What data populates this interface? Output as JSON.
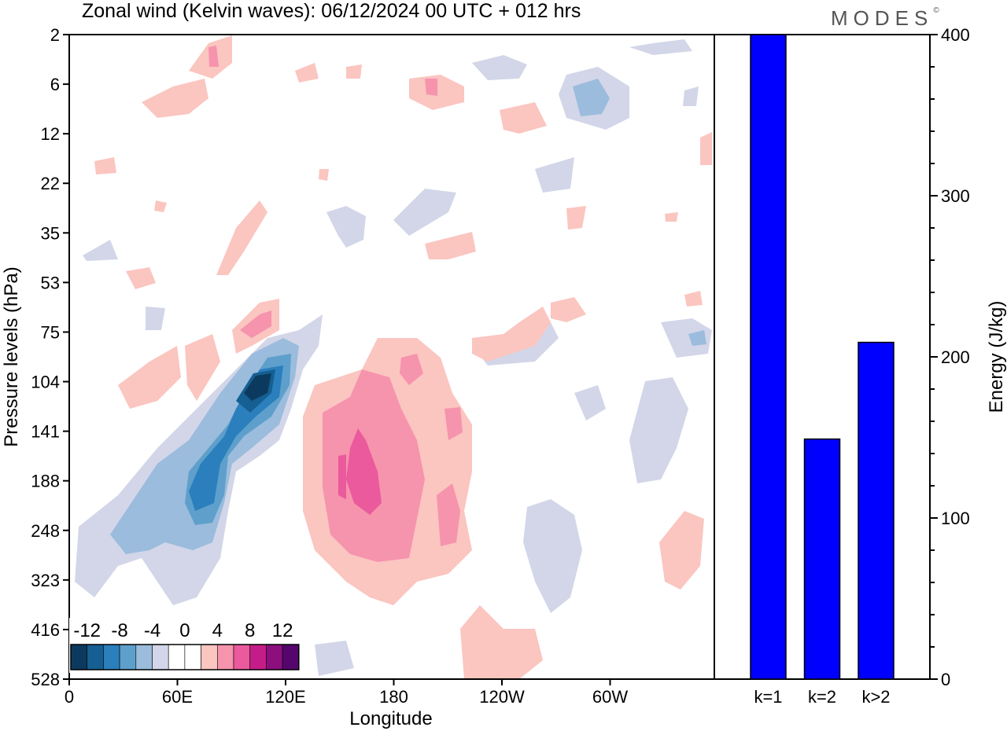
{
  "title": "Zonal wind (Kelvin waves):  06/12/2024  00 UTC  + 012 hrs",
  "logo": {
    "text": "MODES",
    "mark": "©"
  },
  "chart_data": [
    {
      "type": "heatmap",
      "title": "Zonal wind (Kelvin waves):  06/12/2024  00 UTC  + 012 hrs",
      "xlabel": "Longitude",
      "ylabel": "Pressure levels (hPa)",
      "x_ticks": [
        "0",
        "60E",
        "120E",
        "180",
        "120W",
        "60W"
      ],
      "y_ticks": [
        "2",
        "6",
        "12",
        "22",
        "35",
        "53",
        "75",
        "104",
        "141",
        "188",
        "248",
        "323",
        "416",
        "528"
      ],
      "colorbar": {
        "labels": [
          "-12",
          "-8",
          "-4",
          "0",
          "4",
          "8",
          "12"
        ],
        "colors": [
          "#0c3a5e",
          "#155f92",
          "#2a7fbc",
          "#5e9fcc",
          "#9bbcdc",
          "#d2d6e8",
          "#ffffff",
          "#ffffff",
          "#fbc5c0",
          "#f693ad",
          "#ea5a9c",
          "#c41d89",
          "#8c0f7d",
          "#55066c"
        ]
      },
      "features": [
        {
          "kind": "negative",
          "level": 2,
          "lon": 87,
          "lev": 188
        },
        {
          "kind": "negative",
          "level": 3,
          "lon": 103,
          "lev": 120
        },
        {
          "kind": "negative",
          "level": 4,
          "lon": 108,
          "lev": 104
        },
        {
          "kind": "positive",
          "level": 2,
          "lon": 165,
          "lev": 188
        },
        {
          "kind": "positive",
          "level": 3,
          "lon": 160,
          "lev": 188
        },
        {
          "kind": "positive",
          "level": 2,
          "lon": 103,
          "lev": 75
        }
      ]
    },
    {
      "type": "bar",
      "categories": [
        "k=1",
        "k=2",
        "k>2"
      ],
      "values": [
        400,
        149,
        209
      ],
      "ylabel": "Energy (J/kg)",
      "ylim": [
        0,
        400
      ],
      "y_ticks": [
        0,
        100,
        200,
        300,
        400
      ],
      "bar_color": "#0000ff"
    }
  ]
}
